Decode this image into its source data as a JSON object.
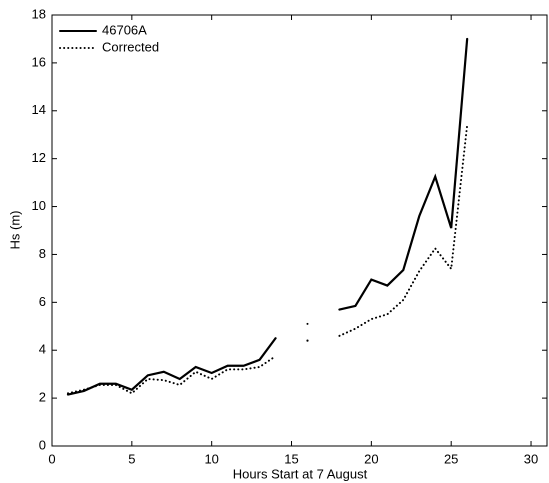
{
  "chart_data": {
    "type": "line",
    "x_label": "Hours Start at 7 August",
    "y_label": "Hs (m)",
    "x": [
      1,
      2,
      3,
      4,
      5,
      6,
      7,
      8,
      9,
      10,
      11,
      12,
      13,
      14,
      15,
      16,
      17,
      18,
      19,
      20,
      21,
      22,
      23,
      24,
      25,
      26
    ],
    "series": [
      {
        "name": "46706A",
        "color": "#000000",
        "style": "solid",
        "values": [
          2.15,
          2.3,
          2.6,
          2.6,
          2.35,
          2.95,
          3.1,
          2.8,
          3.3,
          3.05,
          3.35,
          3.35,
          3.6,
          4.5,
          null,
          4.4,
          null,
          5.7,
          5.85,
          6.95,
          6.7,
          7.35,
          9.6,
          11.25,
          9.1,
          17.0
        ]
      },
      {
        "name": "Corrected",
        "color": "#000000",
        "style": "dotted",
        "values": [
          2.2,
          2.35,
          2.55,
          2.55,
          2.2,
          2.8,
          2.75,
          2.55,
          3.1,
          2.8,
          3.2,
          3.2,
          3.3,
          3.75,
          null,
          5.1,
          null,
          4.6,
          4.9,
          5.3,
          5.5,
          6.1,
          7.3,
          8.25,
          7.4,
          13.4
        ]
      }
    ],
    "xlim": [
      0,
      31
    ],
    "xticks": [
      0,
      5,
      10,
      15,
      20,
      25,
      30
    ],
    "ylim": [
      0,
      18
    ],
    "yticks": [
      0,
      2,
      4,
      6,
      8,
      10,
      12,
      14,
      16,
      18
    ],
    "legend": "upper-left",
    "grid": false
  }
}
